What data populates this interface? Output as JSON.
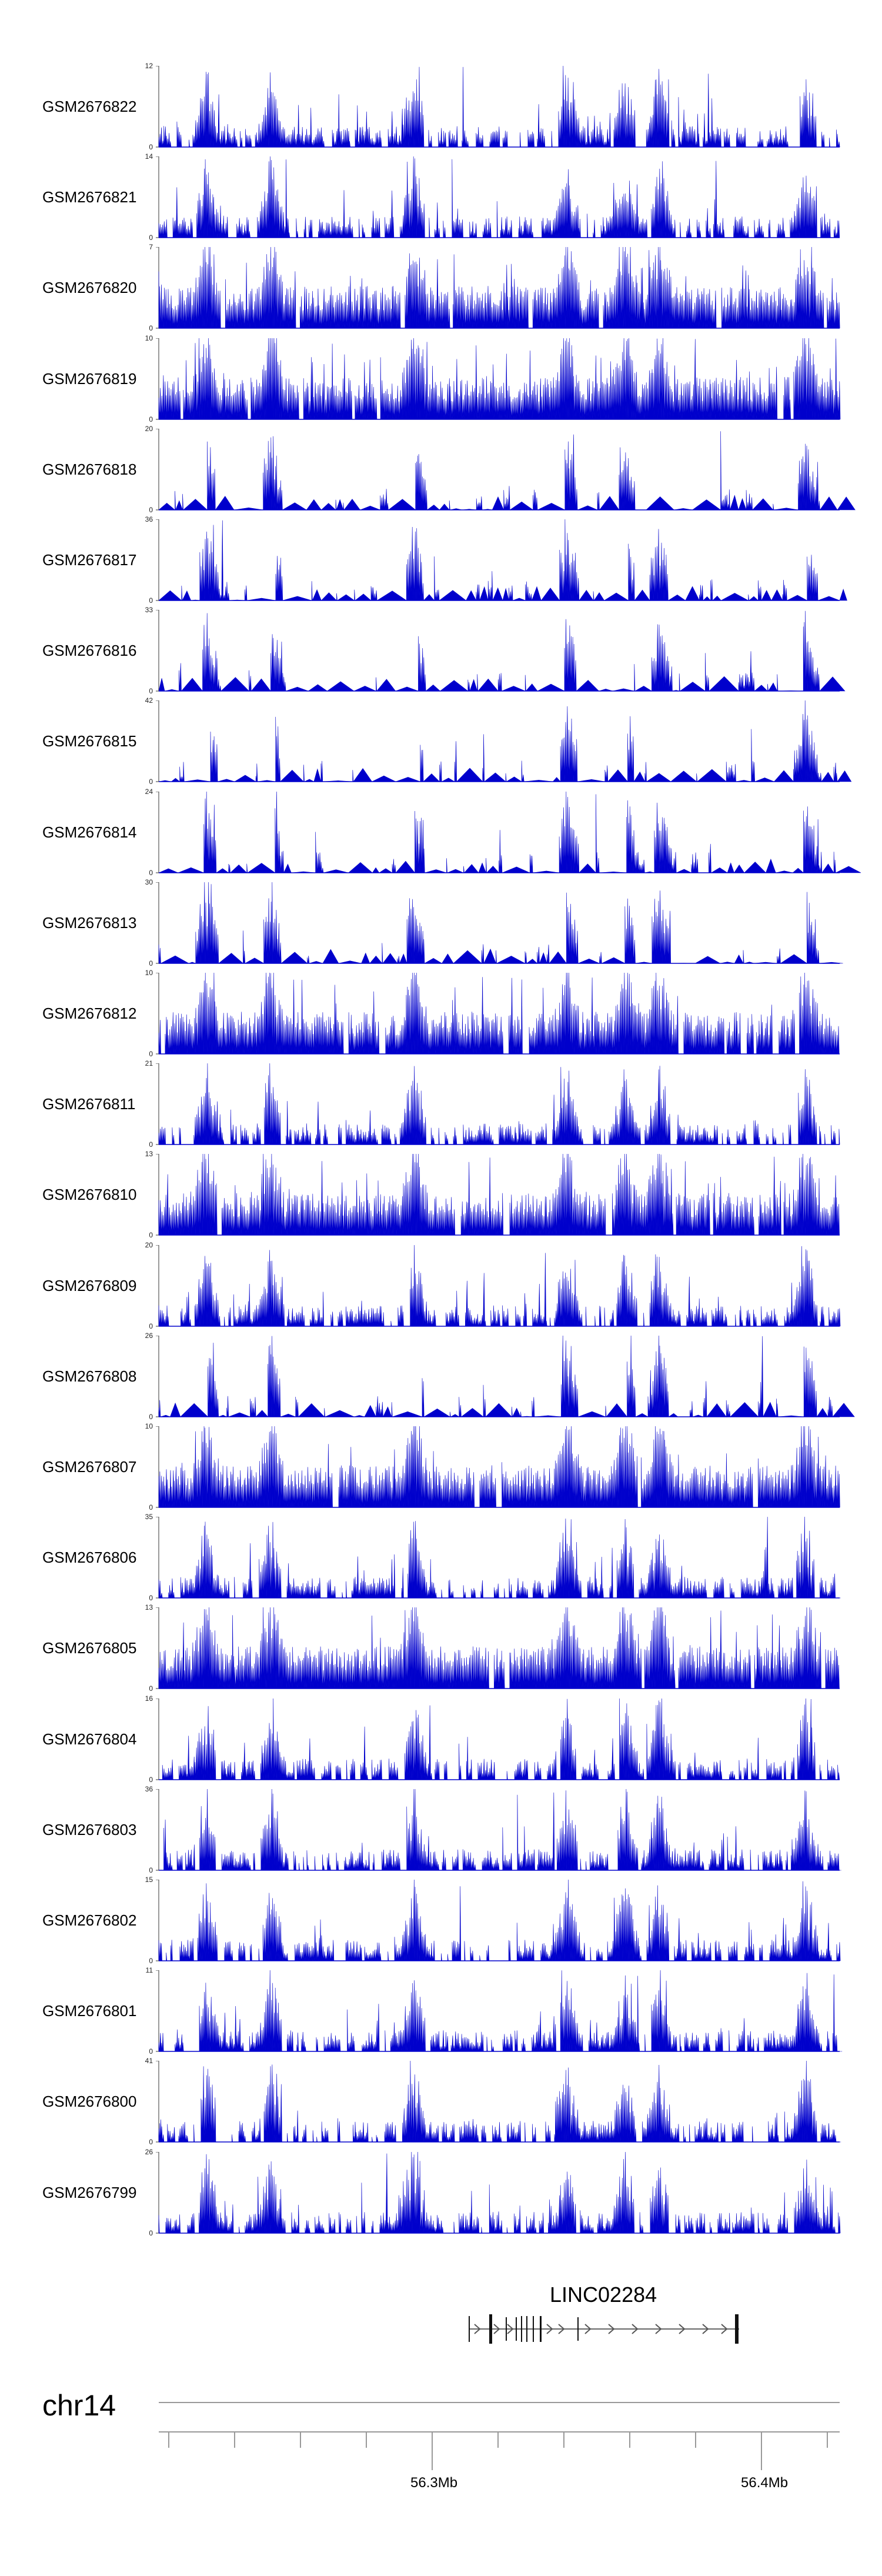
{
  "chart_data": {
    "type": "area",
    "color": "#0000cc",
    "tracks": [
      {
        "name": "GSM2676822",
        "ymax": 12,
        "ymin": 0
      },
      {
        "name": "GSM2676821",
        "ymax": 14,
        "ymin": 0
      },
      {
        "name": "GSM2676820",
        "ymax": 7,
        "ymin": 0
      },
      {
        "name": "GSM2676819",
        "ymax": 10,
        "ymin": 0
      },
      {
        "name": "GSM2676818",
        "ymax": 20,
        "ymin": 0
      },
      {
        "name": "GSM2676817",
        "ymax": 36,
        "ymin": 0
      },
      {
        "name": "GSM2676816",
        "ymax": 33,
        "ymin": 0
      },
      {
        "name": "GSM2676815",
        "ymax": 42,
        "ymin": 0
      },
      {
        "name": "GSM2676814",
        "ymax": 24,
        "ymin": 0
      },
      {
        "name": "GSM2676813",
        "ymax": 30,
        "ymin": 0
      },
      {
        "name": "GSM2676812",
        "ymax": 10,
        "ymin": 0
      },
      {
        "name": "GSM2676811",
        "ymax": 21,
        "ymin": 0
      },
      {
        "name": "GSM2676810",
        "ymax": 13,
        "ymin": 0
      },
      {
        "name": "GSM2676809",
        "ymax": 20,
        "ymin": 0
      },
      {
        "name": "GSM2676808",
        "ymax": 26,
        "ymin": 0
      },
      {
        "name": "GSM2676807",
        "ymax": 10,
        "ymin": 0
      },
      {
        "name": "GSM2676806",
        "ymax": 35,
        "ymin": 0
      },
      {
        "name": "GSM2676805",
        "ymax": 13,
        "ymin": 0
      },
      {
        "name": "GSM2676804",
        "ymax": 16,
        "ymin": 0
      },
      {
        "name": "GSM2676803",
        "ymax": 36,
        "ymin": 0
      },
      {
        "name": "GSM2676802",
        "ymax": 15,
        "ymin": 0
      },
      {
        "name": "GSM2676801",
        "ymax": 11,
        "ymin": 0
      },
      {
        "name": "GSM2676800",
        "ymax": 41,
        "ymin": 0
      },
      {
        "name": "GSM2676799",
        "ymax": 26,
        "ymin": 0
      }
    ],
    "gene": {
      "name": "LINC02284",
      "strand": "+"
    },
    "chromosome": "chr14",
    "axis": {
      "unit": "Mb",
      "tick_labels": [
        "56.3Mb",
        "56.4Mb"
      ]
    }
  }
}
